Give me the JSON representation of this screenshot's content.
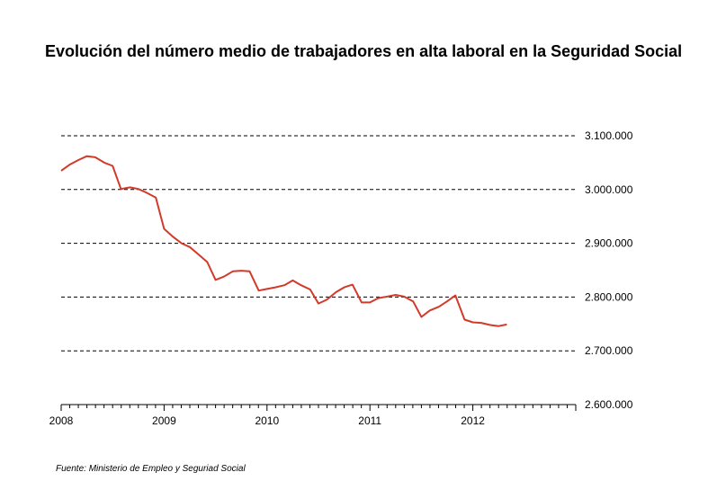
{
  "chart_data": {
    "type": "line",
    "title": "Evolución del número medio de trabajadores en alta laboral en la Seguridad Social",
    "xlabel": "",
    "ylabel": "",
    "source": "Fuente: Ministerio de Empleo y Seguriad Social",
    "x_ticks": [
      "2008",
      "2009",
      "2010",
      "2011",
      "2012"
    ],
    "y_ticks": [
      "3.100.000",
      "3.000.000",
      "2.900.000",
      "2.800.000",
      "2.700.000",
      "2.600.000"
    ],
    "ylim": [
      2600000,
      3100000
    ],
    "xlim": [
      2008.0,
      2013.0
    ],
    "y_axis_position": "right",
    "grid": "horizontal dashed",
    "line_color": "#d23a2a",
    "series": [
      {
        "x": [
          2008.0,
          2008.08,
          2008.17,
          2008.25,
          2008.33,
          2008.42,
          2008.5,
          2008.58,
          2008.67,
          2008.75,
          2008.83,
          2008.92,
          2009.0,
          2009.08,
          2009.17,
          2009.25,
          2009.33,
          2009.42,
          2009.5,
          2009.58,
          2009.67,
          2009.75,
          2009.83,
          2009.92,
          2010.0,
          2010.08,
          2010.17,
          2010.25,
          2010.33,
          2010.42,
          2010.5,
          2010.58,
          2010.67,
          2010.75,
          2010.83,
          2010.92,
          2011.0,
          2011.08,
          2011.17,
          2011.25,
          2011.33,
          2011.42,
          2011.5,
          2011.58,
          2011.67,
          2011.75,
          2011.83,
          2011.92,
          2012.0,
          2012.08,
          2012.17,
          2012.25,
          2012.33
        ],
        "values": [
          3035000,
          3046000,
          3055000,
          3062000,
          3060000,
          3050000,
          3044000,
          3001000,
          3004000,
          3001000,
          2994000,
          2985000,
          2927000,
          2913000,
          2900000,
          2893000,
          2880000,
          2865000,
          2832000,
          2838000,
          2848000,
          2849000,
          2848000,
          2812000,
          2815000,
          2818000,
          2822000,
          2831000,
          2822000,
          2814000,
          2788000,
          2795000,
          2809000,
          2818000,
          2823000,
          2790000,
          2790000,
          2798000,
          2801000,
          2804000,
          2801000,
          2792000,
          2763000,
          2775000,
          2782000,
          2792000,
          2803000,
          2758000,
          2753000,
          2752000,
          2748000,
          2746000,
          2749000
        ]
      }
    ]
  }
}
